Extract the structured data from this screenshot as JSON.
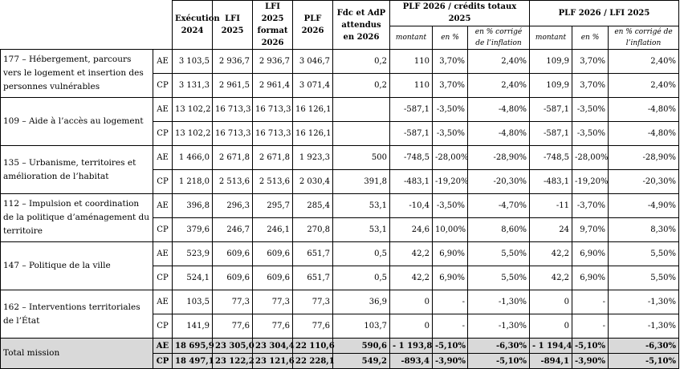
{
  "headers": {
    "execution": "Exécution 2024",
    "lfi": "LFI 2025",
    "lfi_format": "LFI 2025 format 2026",
    "plf": "PLF 2026",
    "fdc": "Fdc et AdP attendus en 2026",
    "group1": "PLF 2026 / crédits totaux 2025",
    "group2": "PLF 2026 / LFI 2025",
    "montant": "montant",
    "pct": "en %",
    "pct_infl": "en % corrigé de l’inflation"
  },
  "programmes": [
    {
      "label": "177 – Hébergement, parcours vers le logement et insertion des personnes vulnérables",
      "rows": [
        [
          "AE",
          "3 103,5",
          "2 936,7",
          "2 936,7",
          "3 046,7",
          "0,2",
          "110",
          "3,70%",
          "2,40%",
          "109,9",
          "3,70%",
          "2,40%"
        ],
        [
          "CP",
          "3 131,3",
          "2 961,5",
          "2 961,4",
          "3 071,4",
          "0,2",
          "110",
          "3,70%",
          "2,40%",
          "109,9",
          "3,70%",
          "2,40%"
        ]
      ]
    },
    {
      "label": "109 – Aide à l’accès au logement",
      "rows": [
        [
          "AE",
          "13 102,2",
          "16 713,3",
          "16 713,3",
          "16 126,1",
          "",
          "-587,1",
          "-3,50%",
          "-4,80%",
          "-587,1",
          "-3,50%",
          "-4,80%"
        ],
        [
          "CP",
          "13 102,2",
          "16 713,3",
          "16 713,3",
          "16 126,1",
          "",
          "-587,1",
          "-3,50%",
          "-4,80%",
          "-587,1",
          "-3,50%",
          "-4,80%"
        ]
      ]
    },
    {
      "label": "135 – Urbanisme, territoires et amélioration de l’habitat",
      "rows": [
        [
          "AE",
          "1 466,0",
          "2 671,8",
          "2 671,8",
          "1 923,3",
          "500",
          "-748,5",
          "-28,00%",
          "-28,90%",
          "-748,5",
          "-28,00%",
          "-28,90%"
        ],
        [
          "CP",
          "1 218,0",
          "2 513,6",
          "2 513,6",
          "2 030,4",
          "391,8",
          "-483,1",
          "-19,20%",
          "-20,30%",
          "-483,1",
          "-19,20%",
          "-20,30%"
        ]
      ]
    },
    {
      "label": "112 – Impulsion et coordination de la politique d’aménagement du territoire",
      "rows": [
        [
          "AE",
          "396,8",
          "296,3",
          "295,7",
          "285,4",
          "53,1",
          "-10,4",
          "-3,50%",
          "-4,70%",
          "-11",
          "-3,70%",
          "-4,90%"
        ],
        [
          "CP",
          "379,6",
          "246,7",
          "246,1",
          "270,8",
          "53,1",
          "24,6",
          "10,00%",
          "8,60%",
          "24",
          "9,70%",
          "8,30%"
        ]
      ]
    },
    {
      "label": "147 – Politique de la ville",
      "rows": [
        [
          "AE",
          "523,9",
          "609,6",
          "609,6",
          "651,7",
          "0,5",
          "42,2",
          "6,90%",
          "5,50%",
          "42,2",
          "6,90%",
          "5,50%"
        ],
        [
          "CP",
          "524,1",
          "609,6",
          "609,6",
          "651,7",
          "0,5",
          "42,2",
          "6,90%",
          "5,50%",
          "42,2",
          "6,90%",
          "5,50%"
        ]
      ]
    },
    {
      "label": "162 – Interventions territoriales de l’État",
      "rows": [
        [
          "AE",
          "103,5",
          "77,3",
          "77,3",
          "77,3",
          "36,9",
          "0",
          "-",
          "-1,30%",
          "0",
          "-",
          "-1,30%"
        ],
        [
          "CP",
          "141,9",
          "77,6",
          "77,6",
          "77,6",
          "103,7",
          "0",
          "-",
          "-1,30%",
          "0",
          "-",
          "-1,30%"
        ]
      ]
    }
  ],
  "total": {
    "label": "Total mission",
    "rows": [
      [
        "AE",
        "18 695,9",
        "23 305,0",
        "23 304,4",
        "22 110,6",
        "590,6",
        "- 1 193,8",
        "-5,10%",
        "-6,30%",
        "- 1 194,4",
        "-5,10%",
        "-6,30%"
      ],
      [
        "CP",
        "18 497,1",
        "23 122,2",
        "23 121,6",
        "22 228,1",
        "549,2",
        "-893,4",
        "-3,90%",
        "-5,10%",
        "-894,1",
        "-3,90%",
        "-5,10%"
      ]
    ]
  }
}
